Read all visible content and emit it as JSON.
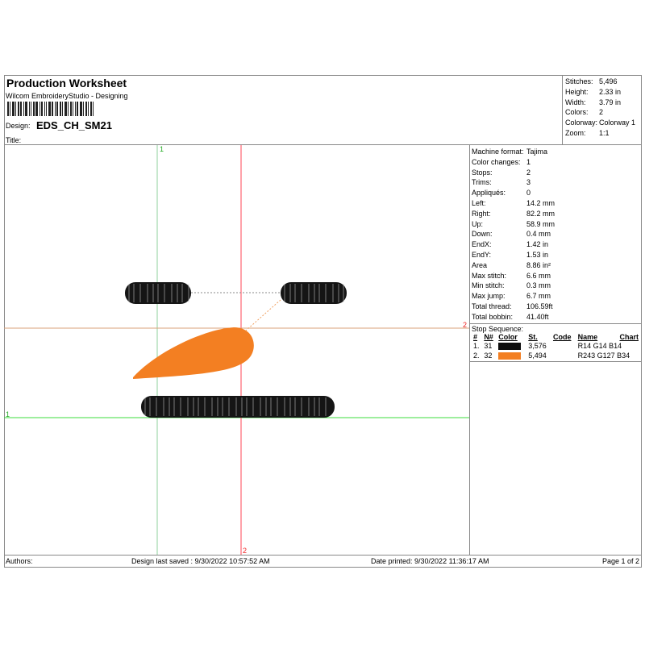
{
  "header": {
    "title": "Production Worksheet",
    "subtitle": "Wilcom EmbroideryStudio - Designing",
    "design_label": "Design:",
    "design_name": "EDS_CH_SM21",
    "title_label": "Title:"
  },
  "stats": [
    {
      "k": "Stitches:",
      "v": "5,496"
    },
    {
      "k": "Height:",
      "v": "2.33 in"
    },
    {
      "k": "Width:",
      "v": "3.79 in"
    },
    {
      "k": "Colors:",
      "v": "2"
    },
    {
      "k": "Colorway:",
      "v": "Colorway 1"
    },
    {
      "k": "Zoom:",
      "v": "1:1"
    }
  ],
  "info": [
    {
      "k": "Machine format:",
      "v": "Tajima"
    },
    {
      "k": "Color changes:",
      "v": "1"
    },
    {
      "k": "Stops:",
      "v": "2"
    },
    {
      "k": "Trims:",
      "v": "3"
    },
    {
      "k": "Appliqués:",
      "v": "0"
    },
    {
      "k": "Left:",
      "v": "14.2 mm"
    },
    {
      "k": "Right:",
      "v": "82.2 mm"
    },
    {
      "k": "Up:",
      "v": "58.9 mm"
    },
    {
      "k": "Down:",
      "v": "0.4 mm"
    },
    {
      "k": "EndX:",
      "v": "1.42 in"
    },
    {
      "k": "EndY:",
      "v": "1.53 in"
    },
    {
      "k": "Area",
      "v": "8.86 in²"
    },
    {
      "k": "Max stitch:",
      "v": "6.6 mm"
    },
    {
      "k": "Min stitch:",
      "v": "0.3 mm"
    },
    {
      "k": "Max jump:",
      "v": "6.7 mm"
    },
    {
      "k": "Total thread:",
      "v": "106.59ft"
    },
    {
      "k": "Total bobbin:",
      "v": "41.40ft"
    }
  ],
  "stop_sequence": {
    "label": "Stop Sequence:",
    "columns": [
      "#",
      "N#",
      "Color",
      "St.",
      "Code",
      "Name",
      "Chart"
    ],
    "rows": [
      {
        "num": "1.",
        "n": "31",
        "color": "#0e0e0e",
        "st": "3,576",
        "code": "",
        "name": "R14 G14 B14"
      },
      {
        "num": "2.",
        "n": "32",
        "color": "#f37f22",
        "st": "5,494",
        "code": "",
        "name": "R243 G127 B34"
      }
    ]
  },
  "guides": {
    "top": "1",
    "right": "2",
    "left": "1",
    "bottom": "2"
  },
  "footer": {
    "authors": "Authors:",
    "saved": "Design last saved : 9/30/2022 10:57:52 AM",
    "printed": "Date printed: 9/30/2022 11:36:17 AM",
    "page": "Page 1 of 2"
  }
}
